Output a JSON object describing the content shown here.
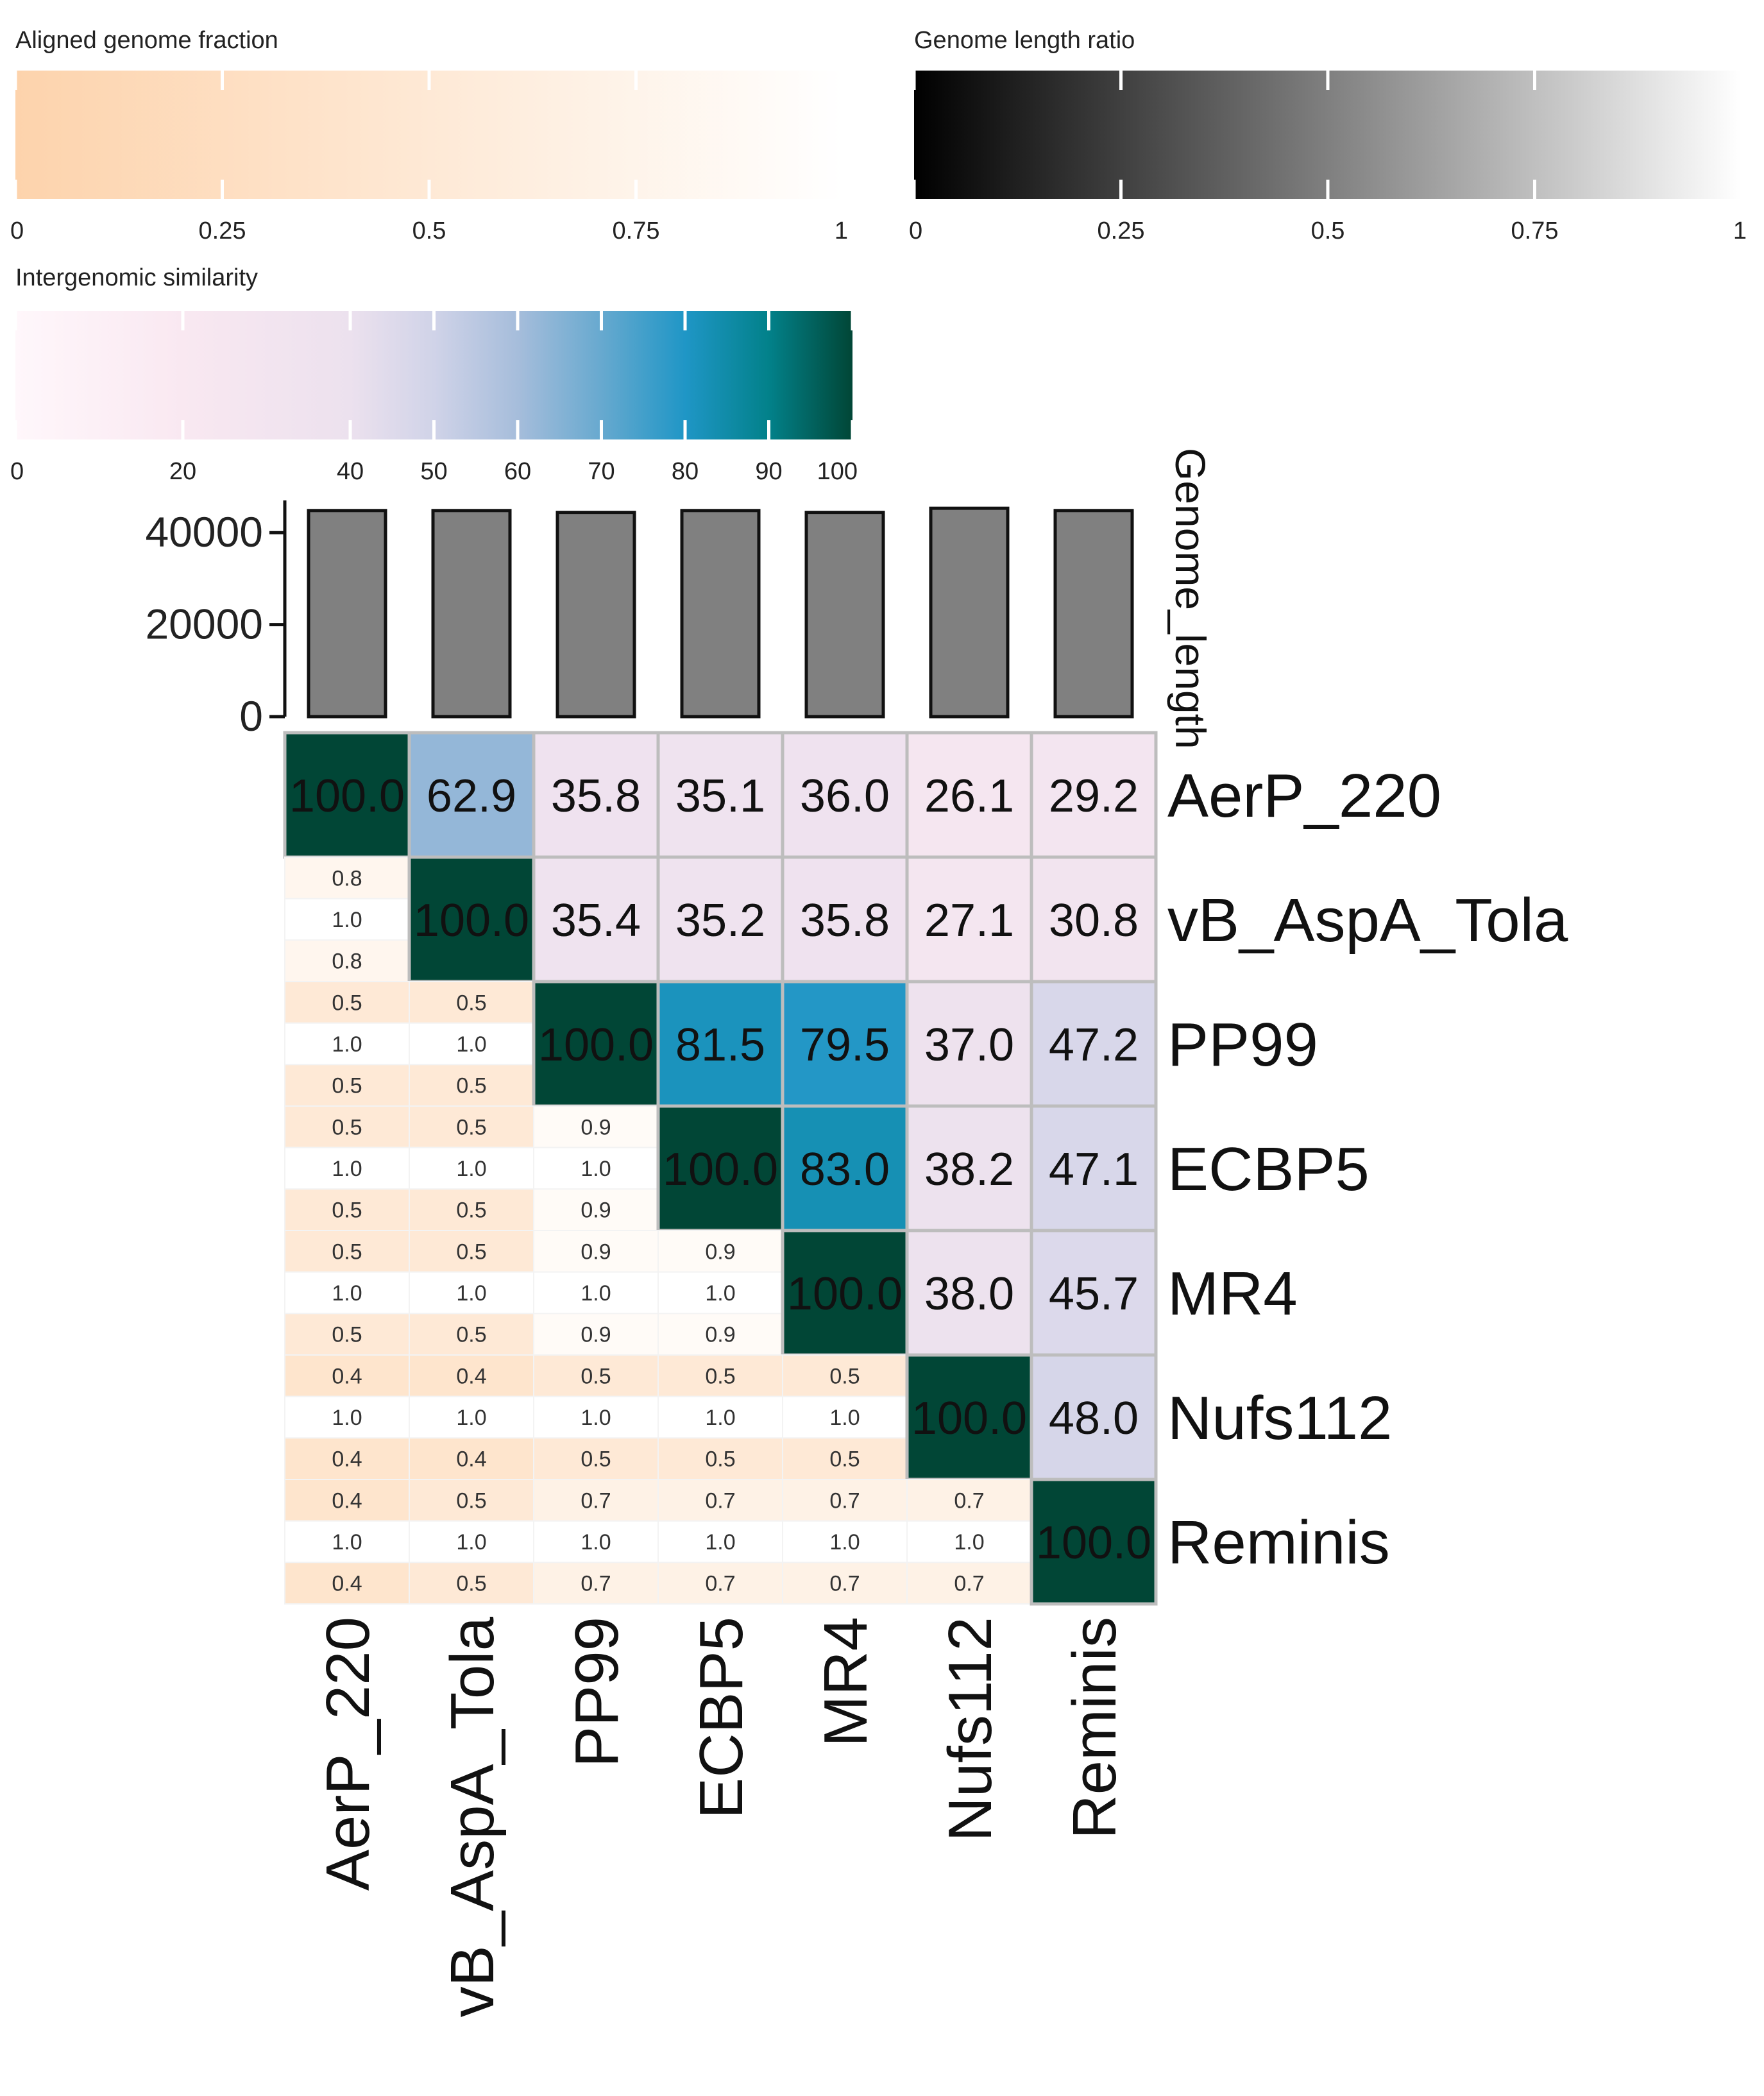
{
  "chart_data": {
    "type": "heatmap",
    "names": [
      "AerP_220",
      "vB_AspA_Tola",
      "PP99",
      "ECBP5",
      "MR4",
      "Nufs112",
      "Reminis"
    ],
    "genome_length_axis": {
      "label": "Genome_length",
      "range": [
        0,
        47000
      ],
      "ticks": [
        0,
        20000,
        40000
      ],
      "tick_labels": [
        "0",
        "20000",
        "40000"
      ]
    },
    "genome_lengths": [
      44800,
      44800,
      44400,
      44800,
      44400,
      45300,
      44800
    ],
    "similarity": [
      [
        "100.0",
        "62.9",
        "35.8",
        "35.1",
        "36.0",
        "26.1",
        "29.2"
      ],
      [
        null,
        "100.0",
        "35.4",
        "35.2",
        "35.8",
        "27.1",
        "30.8"
      ],
      [
        null,
        null,
        "100.0",
        "81.5",
        "79.5",
        "37.0",
        "47.2"
      ],
      [
        null,
        null,
        null,
        "100.0",
        "83.0",
        "38.2",
        "47.1"
      ],
      [
        null,
        null,
        null,
        null,
        "100.0",
        "38.0",
        "45.7"
      ],
      [
        null,
        null,
        null,
        null,
        null,
        "100.0",
        "48.0"
      ],
      [
        null,
        null,
        null,
        null,
        null,
        null,
        "100.0"
      ]
    ],
    "lower_triangle": [
      [],
      [
        [
          "0.8",
          "1.0",
          "0.8"
        ]
      ],
      [
        [
          "0.5",
          "1.0",
          "0.5"
        ],
        [
          "0.5",
          "1.0",
          "0.5"
        ]
      ],
      [
        [
          "0.5",
          "1.0",
          "0.5"
        ],
        [
          "0.5",
          "1.0",
          "0.5"
        ],
        [
          "0.9",
          "1.0",
          "0.9"
        ]
      ],
      [
        [
          "0.5",
          "1.0",
          "0.5"
        ],
        [
          "0.5",
          "1.0",
          "0.5"
        ],
        [
          "0.9",
          "1.0",
          "0.9"
        ],
        [
          "0.9",
          "1.0",
          "0.9"
        ]
      ],
      [
        [
          "0.4",
          "1.0",
          "0.4"
        ],
        [
          "0.4",
          "1.0",
          "0.4"
        ],
        [
          "0.5",
          "1.0",
          "0.5"
        ],
        [
          "0.5",
          "1.0",
          "0.5"
        ],
        [
          "0.5",
          "1.0",
          "0.5"
        ]
      ],
      [
        [
          "0.4",
          "1.0",
          "0.4"
        ],
        [
          "0.5",
          "1.0",
          "0.5"
        ],
        [
          "0.7",
          "1.0",
          "0.7"
        ],
        [
          "0.7",
          "1.0",
          "0.7"
        ],
        [
          "0.7",
          "1.0",
          "0.7"
        ],
        [
          "0.7",
          "1.0",
          "0.7"
        ]
      ]
    ],
    "legends": {
      "aligned": {
        "title": "Aligned genome fraction",
        "range": [
          0,
          1
        ],
        "ticks": [
          0,
          0.25,
          0.5,
          0.75,
          1
        ],
        "tick_labels": [
          "0",
          "0.25",
          "0.5",
          "0.75",
          "1"
        ],
        "colors": [
          "#fdd3ac",
          "#ffffff"
        ]
      },
      "ratio": {
        "title": "Genome length ratio",
        "range": [
          0,
          1
        ],
        "ticks": [
          0,
          0.25,
          0.5,
          0.75,
          1
        ],
        "tick_labels": [
          "0",
          "0.25",
          "0.5",
          "0.75",
          "1"
        ],
        "colors": [
          "#000000",
          "#ffffff"
        ]
      },
      "similarity": {
        "title": "Intergenomic similarity",
        "range": [
          0,
          100
        ],
        "ticks": [
          0,
          20,
          40,
          50,
          60,
          70,
          80,
          90,
          100
        ],
        "tick_labels": [
          "0",
          "20",
          "40",
          "50",
          "60",
          "70",
          "80",
          "90",
          "100"
        ],
        "stops": [
          [
            0,
            "#fff7fb"
          ],
          [
            20,
            "#f9e8f1"
          ],
          [
            40,
            "#ece1ee"
          ],
          [
            50,
            "#d0d3e8"
          ],
          [
            60,
            "#a6bddb"
          ],
          [
            70,
            "#67a9cf"
          ],
          [
            80,
            "#1f96c6"
          ],
          [
            90,
            "#02818a"
          ],
          [
            100,
            "#014636"
          ]
        ]
      }
    }
  }
}
